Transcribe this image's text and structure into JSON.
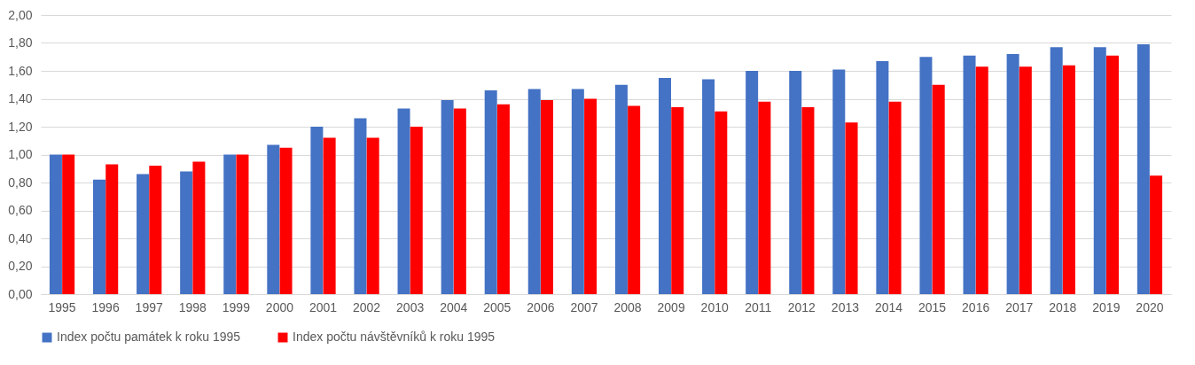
{
  "chart_data": {
    "type": "bar",
    "categories": [
      "1995",
      "1996",
      "1997",
      "1998",
      "1999",
      "2000",
      "2001",
      "2002",
      "2003",
      "2004",
      "2005",
      "2006",
      "2007",
      "2008",
      "2009",
      "2010",
      "2011",
      "2012",
      "2013",
      "2014",
      "2015",
      "2016",
      "2017",
      "2018",
      "2019",
      "2020"
    ],
    "series": [
      {
        "name": "Index počtu památek k roku 1995",
        "color": "#4472c4",
        "values": [
          1.0,
          0.82,
          0.86,
          0.88,
          1.0,
          1.07,
          1.2,
          1.26,
          1.33,
          1.39,
          1.46,
          1.47,
          1.47,
          1.5,
          1.55,
          1.54,
          1.6,
          1.6,
          1.61,
          1.67,
          1.7,
          1.71,
          1.72,
          1.77,
          1.77,
          1.79
        ]
      },
      {
        "name": "Index počtu návštěvníků k roku 1995",
        "color": "#ff0000",
        "values": [
          1.0,
          0.93,
          0.92,
          0.95,
          1.0,
          1.05,
          1.12,
          1.12,
          1.2,
          1.33,
          1.36,
          1.39,
          1.4,
          1.35,
          1.34,
          1.31,
          1.38,
          1.34,
          1.23,
          1.38,
          1.5,
          1.63,
          1.63,
          1.64,
          1.71,
          0.85
        ]
      }
    ],
    "ylim": [
      0,
      2
    ],
    "yticks": [
      {
        "value": 0,
        "label": "0,00"
      },
      {
        "value": 0.2,
        "label": "0,20"
      },
      {
        "value": 0.4,
        "label": "0,40"
      },
      {
        "value": 0.6,
        "label": "0,60"
      },
      {
        "value": 0.8,
        "label": "0,80"
      },
      {
        "value": 1,
        "label": "1,00"
      },
      {
        "value": 1.2,
        "label": "1,20"
      },
      {
        "value": 1.4,
        "label": "1,40"
      },
      {
        "value": 1.6,
        "label": "1,60"
      },
      {
        "value": 1.8,
        "label": "1,80"
      },
      {
        "value": 2,
        "label": "2,00"
      }
    ],
    "grid": "y",
    "legend": "bottom"
  }
}
